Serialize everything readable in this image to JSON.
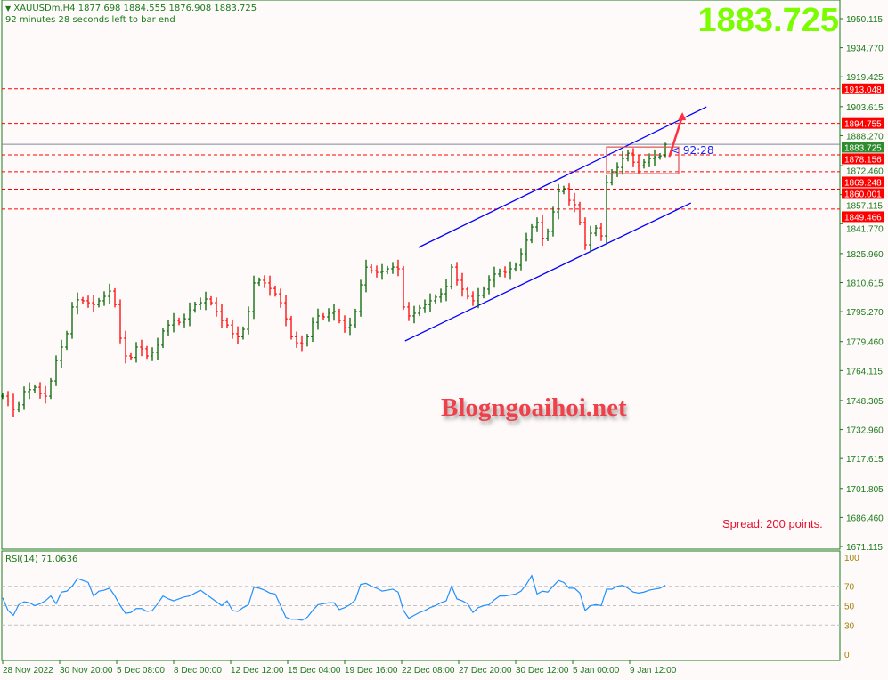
{
  "header": {
    "symbol_line": "XAUUSDm,H4  1877.698 1884.555 1876.908 1883.725",
    "timer_line": "92 minutes 28 seconds left to bar end"
  },
  "big_price": "1883.725",
  "watermark": "Blogngoaihoi.net",
  "spread_text": "Spread: 200 points.",
  "countdown": "< 92:28",
  "colors": {
    "up": "#006400",
    "down": "#ff0000",
    "channel": "#0000ff",
    "level": "#ff0000",
    "rsi": "#1e90ff",
    "axis": "#1a7a1a",
    "big_price": "#7cfc00",
    "current": "#2e8b2e"
  },
  "chart_data": [
    {
      "type": "ohlc",
      "title": "XAUUSDm,H4",
      "ylim": [
        1671.115,
        1950.115
      ],
      "y_ticks": [
        "1950.115",
        "1934.770",
        "1919.425",
        "1903.615",
        "1888.270",
        "1872.460",
        "1857.115",
        "1841.770",
        "1825.960",
        "1810.615",
        "1795.270",
        "1779.460",
        "1764.115",
        "1748.305",
        "1732.960",
        "1717.615",
        "1701.805",
        "1686.460",
        "1671.115"
      ],
      "x_ticks": [
        "28 Nov 2022",
        "30 Nov 20:00",
        "5 Dec 08:00",
        "8 Dec 00:00",
        "12 Dec 12:00",
        "15 Dec 04:00",
        "19 Dec 16:00",
        "22 Dec 08:00",
        "27 Dec 20:00",
        "30 Dec 12:00",
        "5 Jan 00:00",
        "9 Jan 12:00"
      ],
      "close": [
        1750.6,
        1748,
        1743.6,
        1746,
        1753,
        1754,
        1755.3,
        1752,
        1750.6,
        1758.6,
        1769.4,
        1776.5,
        1783.6,
        1797.7,
        1801.5,
        1801,
        1800,
        1799,
        1801,
        1803.3,
        1806.1,
        1799,
        1781.2,
        1771.8,
        1771,
        1776.5,
        1775.6,
        1771.8,
        1773.7,
        1777.5,
        1785,
        1788.2,
        1790.6,
        1789.6,
        1791.5,
        1796.2,
        1799,
        1800,
        1801.9,
        1800,
        1795.3,
        1790.6,
        1788.2,
        1783.6,
        1782,
        1785.9,
        1795.3,
        1810.4,
        1811.8,
        1810.4,
        1807.5,
        1804.7,
        1800,
        1791.5,
        1782,
        1778.8,
        1778.3,
        1782,
        1789.6,
        1793,
        1792.5,
        1794.4,
        1795.3,
        1790.6,
        1786.8,
        1788.2,
        1795.3,
        1809.4,
        1818.8,
        1816.9,
        1816,
        1816.5,
        1817.9,
        1818.8,
        1817.9,
        1797.7,
        1793,
        1794.4,
        1797.2,
        1799,
        1801,
        1802.9,
        1804.7,
        1808.5,
        1818.8,
        1811.8,
        1807.1,
        1803.3,
        1801,
        1803.8,
        1807.1,
        1811.8,
        1815.1,
        1816.5,
        1816,
        1817.9,
        1819.8,
        1825.9,
        1833,
        1840,
        1842.4,
        1834,
        1837.7,
        1848,
        1858.8,
        1860.3,
        1854.1,
        1851.8,
        1842.4,
        1830.6,
        1836.7,
        1839.5,
        1835.3,
        1863.5,
        1869.1,
        1871.5,
        1876.2,
        1879,
        1874.3,
        1872.4,
        1874.3,
        1876.2,
        1877.1,
        1877.6,
        1883.725
      ],
      "last_bar": {
        "open": 1877.698,
        "high": 1884.555,
        "low": 1876.908,
        "close": 1883.725
      },
      "levels": [
        {
          "price": 1913.048,
          "label": "1913.048"
        },
        {
          "price": 1894.755,
          "label": "1894.755"
        },
        {
          "price": 1878.156,
          "label": "1878.156"
        },
        {
          "price": 1869.248,
          "label": "1869.248"
        },
        {
          "price": 1860.001,
          "label": "1860.001"
        },
        {
          "price": 1849.466,
          "label": "1849.466"
        }
      ],
      "current_price": {
        "price": 1883.725,
        "label": "1883.725"
      },
      "channel": {
        "upper": [
          {
            "bar": 77.8,
            "price": 1829.2
          },
          {
            "bar": 131.7,
            "price": 1903.5
          }
        ],
        "lower": [
          {
            "bar": 75.3,
            "price": 1779.8
          },
          {
            "bar": 128.8,
            "price": 1852.7
          }
        ]
      },
      "rectangle": {
        "bar_from": 113,
        "bar_to": 126.5,
        "price_top": 1882.3,
        "price_bottom": 1868.2
      },
      "arrow": {
        "from": {
          "bar": 124.8,
          "price": 1877.6
        },
        "to": {
          "bar": 127.2,
          "price": 1898.8
        }
      }
    },
    {
      "type": "line",
      "title": "RSI(14) 71.0636",
      "ylim": [
        0,
        100
      ],
      "y_ticks": [
        "100",
        "70",
        "50",
        "30",
        "0"
      ],
      "levels": [
        70,
        50,
        30
      ],
      "values": [
        58,
        45,
        40,
        51,
        54,
        53,
        50,
        52,
        55,
        60,
        52,
        64,
        65,
        70,
        78,
        76,
        74,
        60,
        65,
        66,
        68,
        60,
        50,
        42,
        43,
        47,
        47,
        44,
        45,
        52,
        60,
        57,
        55,
        57,
        59,
        60,
        63,
        66,
        62,
        58,
        54,
        50,
        55,
        45,
        44,
        48,
        51,
        69,
        68,
        66,
        63,
        62,
        50,
        38,
        36,
        36,
        35,
        38,
        45,
        51,
        52,
        53,
        53,
        46,
        48,
        51,
        56,
        72,
        73,
        70,
        68,
        65,
        66,
        67,
        64,
        45,
        37,
        40,
        43,
        45,
        48,
        50,
        53,
        55,
        70,
        57,
        55,
        52,
        43,
        48,
        50,
        51,
        56,
        60,
        60,
        61,
        62,
        65,
        72,
        81,
        62,
        65,
        64,
        70,
        76,
        74,
        68,
        68,
        63,
        45,
        50,
        51,
        50,
        67,
        67,
        70,
        71,
        68,
        64,
        63,
        64,
        66,
        67,
        68,
        71.06
      ]
    }
  ]
}
